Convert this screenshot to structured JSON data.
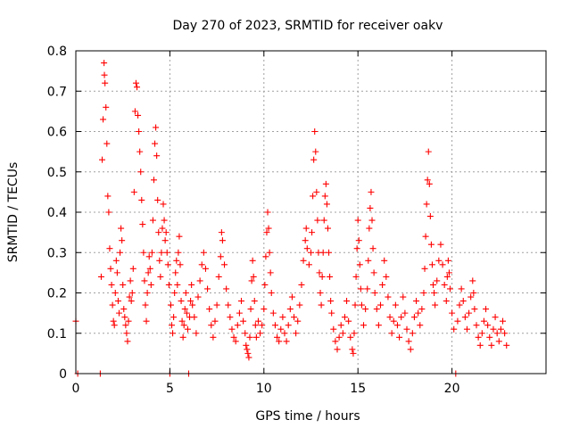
{
  "chart_data": {
    "type": "scatter",
    "title": "Day 270 of 2023, SRMTID for receiver oakv",
    "xlabel": "GPS time / hours",
    "ylabel": "SRMTID / TECUs",
    "xlim": [
      0,
      25
    ],
    "ylim": [
      0,
      0.8
    ],
    "x_ticks": [
      0,
      5,
      10,
      15,
      20
    ],
    "y_ticks": [
      0,
      0.1,
      0.2,
      0.3,
      0.4,
      0.5,
      0.6,
      0.7,
      0.8
    ],
    "x_tick_labels": [
      "0",
      "5",
      "10",
      "15",
      "20"
    ],
    "y_tick_labels": [
      "0",
      "0.1",
      "0.2",
      "0.3",
      "0.4",
      "0.5",
      "0.6",
      "0.7",
      "0.8"
    ],
    "grid": true,
    "marker": "plus",
    "color": "#ff0000",
    "series": [
      {
        "name": "SRMTID",
        "points": [
          [
            0.0,
            0.13
          ],
          [
            0.1,
            0.0
          ],
          [
            1.3,
            0.0
          ],
          [
            1.35,
            0.24
          ],
          [
            1.4,
            0.53
          ],
          [
            1.45,
            0.63
          ],
          [
            1.5,
            0.77
          ],
          [
            1.52,
            0.74
          ],
          [
            1.55,
            0.72
          ],
          [
            1.6,
            0.66
          ],
          [
            1.65,
            0.57
          ],
          [
            1.7,
            0.44
          ],
          [
            1.75,
            0.4
          ],
          [
            1.8,
            0.31
          ],
          [
            1.85,
            0.26
          ],
          [
            1.9,
            0.22
          ],
          [
            1.95,
            0.17
          ],
          [
            2.0,
            0.13
          ],
          [
            2.05,
            0.12
          ],
          [
            2.1,
            0.2
          ],
          [
            2.15,
            0.28
          ],
          [
            2.2,
            0.25
          ],
          [
            2.25,
            0.18
          ],
          [
            2.3,
            0.15
          ],
          [
            2.35,
            0.3
          ],
          [
            2.4,
            0.36
          ],
          [
            2.45,
            0.33
          ],
          [
            2.5,
            0.22
          ],
          [
            2.55,
            0.16
          ],
          [
            2.6,
            0.14
          ],
          [
            2.65,
            0.12
          ],
          [
            2.7,
            0.1
          ],
          [
            2.75,
            0.08
          ],
          [
            2.8,
            0.13
          ],
          [
            2.85,
            0.19
          ],
          [
            2.9,
            0.23
          ],
          [
            2.95,
            0.18
          ],
          [
            3.0,
            0.2
          ],
          [
            3.05,
            0.26
          ],
          [
            3.1,
            0.45
          ],
          [
            3.15,
            0.65
          ],
          [
            3.2,
            0.72
          ],
          [
            3.25,
            0.71
          ],
          [
            3.3,
            0.64
          ],
          [
            3.35,
            0.6
          ],
          [
            3.4,
            0.55
          ],
          [
            3.45,
            0.5
          ],
          [
            3.5,
            0.43
          ],
          [
            3.55,
            0.37
          ],
          [
            3.6,
            0.3
          ],
          [
            3.65,
            0.23
          ],
          [
            3.7,
            0.17
          ],
          [
            3.75,
            0.13
          ],
          [
            3.8,
            0.2
          ],
          [
            3.85,
            0.25
          ],
          [
            3.9,
            0.29
          ],
          [
            3.95,
            0.26
          ],
          [
            4.0,
            0.22
          ],
          [
            4.05,
            0.3
          ],
          [
            4.1,
            0.38
          ],
          [
            4.15,
            0.48
          ],
          [
            4.2,
            0.57
          ],
          [
            4.25,
            0.61
          ],
          [
            4.3,
            0.54
          ],
          [
            4.35,
            0.43
          ],
          [
            4.4,
            0.35
          ],
          [
            4.45,
            0.28
          ],
          [
            4.5,
            0.24
          ],
          [
            4.55,
            0.3
          ],
          [
            4.6,
            0.36
          ],
          [
            4.65,
            0.42
          ],
          [
            4.7,
            0.38
          ],
          [
            4.75,
            0.33
          ],
          [
            4.8,
            0.35
          ],
          [
            4.85,
            0.3
          ],
          [
            4.9,
            0.27
          ],
          [
            4.95,
            0.22
          ],
          [
            5.0,
            0.0
          ],
          [
            5.05,
            0.17
          ],
          [
            5.1,
            0.12
          ],
          [
            5.15,
            0.1
          ],
          [
            5.2,
            0.14
          ],
          [
            5.25,
            0.2
          ],
          [
            5.3,
            0.25
          ],
          [
            5.35,
            0.28
          ],
          [
            5.4,
            0.22
          ],
          [
            5.45,
            0.3
          ],
          [
            5.5,
            0.34
          ],
          [
            5.55,
            0.27
          ],
          [
            5.6,
            0.18
          ],
          [
            5.65,
            0.13
          ],
          [
            5.7,
            0.09
          ],
          [
            5.75,
            0.12
          ],
          [
            5.8,
            0.16
          ],
          [
            5.85,
            0.2
          ],
          [
            5.9,
            0.15
          ],
          [
            5.95,
            0.11
          ],
          [
            6.0,
            0.0
          ],
          [
            6.05,
            0.14
          ],
          [
            6.1,
            0.18
          ],
          [
            6.15,
            0.22
          ],
          [
            6.2,
            0.17
          ],
          [
            6.3,
            0.14
          ],
          [
            6.4,
            0.1
          ],
          [
            6.5,
            0.19
          ],
          [
            6.6,
            0.23
          ],
          [
            6.7,
            0.27
          ],
          [
            6.8,
            0.3
          ],
          [
            6.9,
            0.26
          ],
          [
            7.0,
            0.21
          ],
          [
            7.1,
            0.16
          ],
          [
            7.2,
            0.12
          ],
          [
            7.3,
            0.09
          ],
          [
            7.4,
            0.13
          ],
          [
            7.5,
            0.17
          ],
          [
            7.6,
            0.24
          ],
          [
            7.7,
            0.29
          ],
          [
            7.75,
            0.35
          ],
          [
            7.8,
            0.33
          ],
          [
            7.9,
            0.27
          ],
          [
            8.0,
            0.21
          ],
          [
            8.1,
            0.17
          ],
          [
            8.2,
            0.14
          ],
          [
            8.3,
            0.11
          ],
          [
            8.4,
            0.09
          ],
          [
            8.5,
            0.08
          ],
          [
            8.6,
            0.12
          ],
          [
            8.7,
            0.15
          ],
          [
            8.8,
            0.18
          ],
          [
            8.9,
            0.13
          ],
          [
            9.0,
            0.1
          ],
          [
            9.05,
            0.07
          ],
          [
            9.1,
            0.06
          ],
          [
            9.15,
            0.05
          ],
          [
            9.2,
            0.04
          ],
          [
            9.25,
            0.09
          ],
          [
            9.3,
            0.16
          ],
          [
            9.35,
            0.23
          ],
          [
            9.4,
            0.28
          ],
          [
            9.45,
            0.24
          ],
          [
            9.5,
            0.18
          ],
          [
            9.55,
            0.12
          ],
          [
            9.6,
            0.09
          ],
          [
            9.7,
            0.13
          ],
          [
            9.8,
            0.1
          ],
          [
            9.9,
            0.12
          ],
          [
            10.0,
            0.16
          ],
          [
            10.05,
            0.22
          ],
          [
            10.1,
            0.29
          ],
          [
            10.15,
            0.35
          ],
          [
            10.2,
            0.4
          ],
          [
            10.25,
            0.36
          ],
          [
            10.3,
            0.3
          ],
          [
            10.35,
            0.25
          ],
          [
            10.4,
            0.2
          ],
          [
            10.5,
            0.15
          ],
          [
            10.6,
            0.12
          ],
          [
            10.7,
            0.09
          ],
          [
            10.8,
            0.08
          ],
          [
            10.9,
            0.11
          ],
          [
            11.0,
            0.14
          ],
          [
            11.1,
            0.1
          ],
          [
            11.2,
            0.08
          ],
          [
            11.3,
            0.12
          ],
          [
            11.4,
            0.16
          ],
          [
            11.5,
            0.19
          ],
          [
            11.6,
            0.14
          ],
          [
            11.7,
            0.1
          ],
          [
            11.8,
            0.13
          ],
          [
            11.9,
            0.17
          ],
          [
            12.0,
            0.22
          ],
          [
            12.1,
            0.28
          ],
          [
            12.2,
            0.33
          ],
          [
            12.25,
            0.36
          ],
          [
            12.3,
            0.31
          ],
          [
            12.4,
            0.27
          ],
          [
            12.5,
            0.3
          ],
          [
            12.55,
            0.35
          ],
          [
            12.6,
            0.44
          ],
          [
            12.65,
            0.53
          ],
          [
            12.7,
            0.6
          ],
          [
            12.75,
            0.55
          ],
          [
            12.8,
            0.45
          ],
          [
            12.85,
            0.38
          ],
          [
            12.9,
            0.3
          ],
          [
            12.95,
            0.25
          ],
          [
            13.0,
            0.2
          ],
          [
            13.05,
            0.17
          ],
          [
            13.1,
            0.24
          ],
          [
            13.15,
            0.3
          ],
          [
            13.2,
            0.38
          ],
          [
            13.25,
            0.44
          ],
          [
            13.3,
            0.47
          ],
          [
            13.35,
            0.42
          ],
          [
            13.4,
            0.36
          ],
          [
            13.45,
            0.3
          ],
          [
            13.5,
            0.24
          ],
          [
            13.55,
            0.18
          ],
          [
            13.6,
            0.15
          ],
          [
            13.7,
            0.11
          ],
          [
            13.8,
            0.08
          ],
          [
            13.9,
            0.06
          ],
          [
            14.0,
            0.09
          ],
          [
            14.1,
            0.12
          ],
          [
            14.2,
            0.1
          ],
          [
            14.3,
            0.14
          ],
          [
            14.4,
            0.18
          ],
          [
            14.5,
            0.13
          ],
          [
            14.6,
            0.09
          ],
          [
            14.7,
            0.06
          ],
          [
            14.75,
            0.05
          ],
          [
            14.8,
            0.1
          ],
          [
            14.85,
            0.17
          ],
          [
            14.9,
            0.24
          ],
          [
            14.95,
            0.31
          ],
          [
            15.0,
            0.38
          ],
          [
            15.05,
            0.33
          ],
          [
            15.1,
            0.27
          ],
          [
            15.15,
            0.21
          ],
          [
            15.2,
            0.17
          ],
          [
            15.3,
            0.12
          ],
          [
            15.4,
            0.16
          ],
          [
            15.5,
            0.21
          ],
          [
            15.55,
            0.28
          ],
          [
            15.6,
            0.36
          ],
          [
            15.65,
            0.41
          ],
          [
            15.7,
            0.45
          ],
          [
            15.75,
            0.38
          ],
          [
            15.8,
            0.31
          ],
          [
            15.85,
            0.25
          ],
          [
            15.9,
            0.2
          ],
          [
            16.0,
            0.16
          ],
          [
            16.1,
            0.12
          ],
          [
            16.2,
            0.17
          ],
          [
            16.3,
            0.22
          ],
          [
            16.4,
            0.28
          ],
          [
            16.5,
            0.24
          ],
          [
            16.6,
            0.19
          ],
          [
            16.7,
            0.14
          ],
          [
            16.8,
            0.1
          ],
          [
            16.9,
            0.13
          ],
          [
            17.0,
            0.17
          ],
          [
            17.1,
            0.12
          ],
          [
            17.2,
            0.09
          ],
          [
            17.3,
            0.14
          ],
          [
            17.4,
            0.19
          ],
          [
            17.5,
            0.15
          ],
          [
            17.6,
            0.11
          ],
          [
            17.7,
            0.08
          ],
          [
            17.8,
            0.06
          ],
          [
            17.9,
            0.1
          ],
          [
            18.0,
            0.14
          ],
          [
            18.1,
            0.18
          ],
          [
            18.2,
            0.15
          ],
          [
            18.3,
            0.12
          ],
          [
            18.4,
            0.16
          ],
          [
            18.5,
            0.2
          ],
          [
            18.55,
            0.26
          ],
          [
            18.6,
            0.34
          ],
          [
            18.65,
            0.42
          ],
          [
            18.7,
            0.48
          ],
          [
            18.75,
            0.55
          ],
          [
            18.8,
            0.47
          ],
          [
            18.85,
            0.39
          ],
          [
            18.9,
            0.32
          ],
          [
            18.95,
            0.27
          ],
          [
            19.0,
            0.22
          ],
          [
            19.05,
            0.2
          ],
          [
            19.1,
            0.17
          ],
          [
            19.2,
            0.23
          ],
          [
            19.3,
            0.28
          ],
          [
            19.4,
            0.32
          ],
          [
            19.5,
            0.27
          ],
          [
            19.6,
            0.22
          ],
          [
            19.7,
            0.18
          ],
          [
            19.75,
            0.24
          ],
          [
            19.8,
            0.28
          ],
          [
            19.85,
            0.25
          ],
          [
            19.9,
            0.21
          ],
          [
            20.0,
            0.15
          ],
          [
            20.1,
            0.11
          ],
          [
            20.2,
            0.0
          ],
          [
            20.3,
            0.13
          ],
          [
            20.4,
            0.17
          ],
          [
            20.5,
            0.21
          ],
          [
            20.6,
            0.18
          ],
          [
            20.7,
            0.14
          ],
          [
            20.8,
            0.11
          ],
          [
            20.9,
            0.15
          ],
          [
            21.0,
            0.19
          ],
          [
            21.1,
            0.23
          ],
          [
            21.15,
            0.2
          ],
          [
            21.2,
            0.16
          ],
          [
            21.3,
            0.12
          ],
          [
            21.4,
            0.09
          ],
          [
            21.5,
            0.07
          ],
          [
            21.6,
            0.1
          ],
          [
            21.7,
            0.13
          ],
          [
            21.8,
            0.16
          ],
          [
            21.9,
            0.12
          ],
          [
            22.0,
            0.09
          ],
          [
            22.1,
            0.07
          ],
          [
            22.2,
            0.11
          ],
          [
            22.3,
            0.14
          ],
          [
            22.4,
            0.1
          ],
          [
            22.5,
            0.08
          ],
          [
            22.6,
            0.11
          ],
          [
            22.7,
            0.13
          ],
          [
            22.8,
            0.1
          ],
          [
            22.9,
            0.07
          ]
        ]
      }
    ]
  }
}
